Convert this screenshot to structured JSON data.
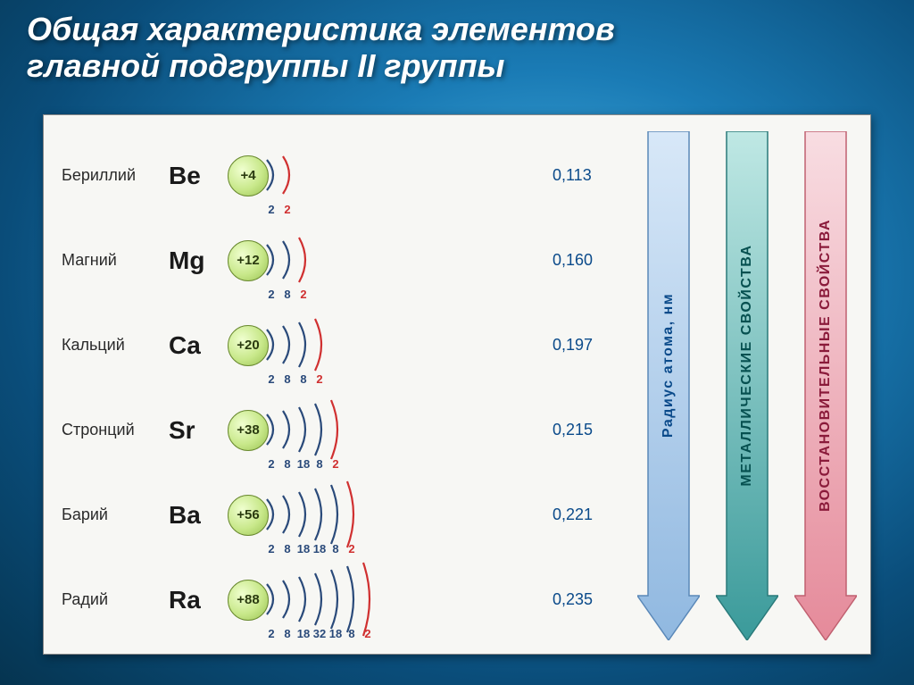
{
  "title_line1": "Общая характеристика элементов",
  "title_line2": "главной подгруппы II группы",
  "shell_color_inner": "#2a4a7a",
  "shell_color_outer": "#d03030",
  "elements": [
    {
      "name": "Бериллий",
      "symbol": "Be",
      "charge": "+4",
      "shells": [
        2,
        2
      ],
      "radius": "0,113"
    },
    {
      "name": "Магний",
      "symbol": "Mg",
      "charge": "+12",
      "shells": [
        2,
        8,
        2
      ],
      "radius": "0,160"
    },
    {
      "name": "Кальций",
      "symbol": "Ca",
      "charge": "+20",
      "shells": [
        2,
        8,
        8,
        2
      ],
      "radius": "0,197"
    },
    {
      "name": "Стронций",
      "symbol": "Sr",
      "charge": "+38",
      "shells": [
        2,
        8,
        18,
        8,
        2
      ],
      "radius": "0,215"
    },
    {
      "name": "Барий",
      "symbol": "Ba",
      "charge": "+56",
      "shells": [
        2,
        8,
        18,
        18,
        8,
        2
      ],
      "radius": "0,221"
    },
    {
      "name": "Радий",
      "symbol": "Ra",
      "charge": "+88",
      "shells": [
        2,
        8,
        18,
        32,
        18,
        8,
        2
      ],
      "radius": "0,235"
    }
  ],
  "arrows": {
    "radius": {
      "label": "Радиус атома, нм",
      "fill_top": "#d8e8f8",
      "fill_bot": "#90b8e0",
      "stroke": "#5a88b8",
      "text_color": "#0a4a8a"
    },
    "metallic": {
      "label": "МЕТАЛЛИЧЕСКИЕ  СВОЙСТВА",
      "fill_top": "#bfe8e4",
      "fill_bot": "#3a9a9a",
      "stroke": "#2a7a7a",
      "text_color": "#065050"
    },
    "redox": {
      "label": "ВОССТАНОВИТЕЛЬНЫЕ  СВОЙСТВА",
      "fill_top": "#f8dde2",
      "fill_bot": "#e58a9a",
      "stroke": "#c06070",
      "text_color": "#8a1a3a"
    }
  },
  "arrow_geom": {
    "shaft_w": 46,
    "head_w": 70,
    "head_h": 50,
    "total_h": 570
  }
}
